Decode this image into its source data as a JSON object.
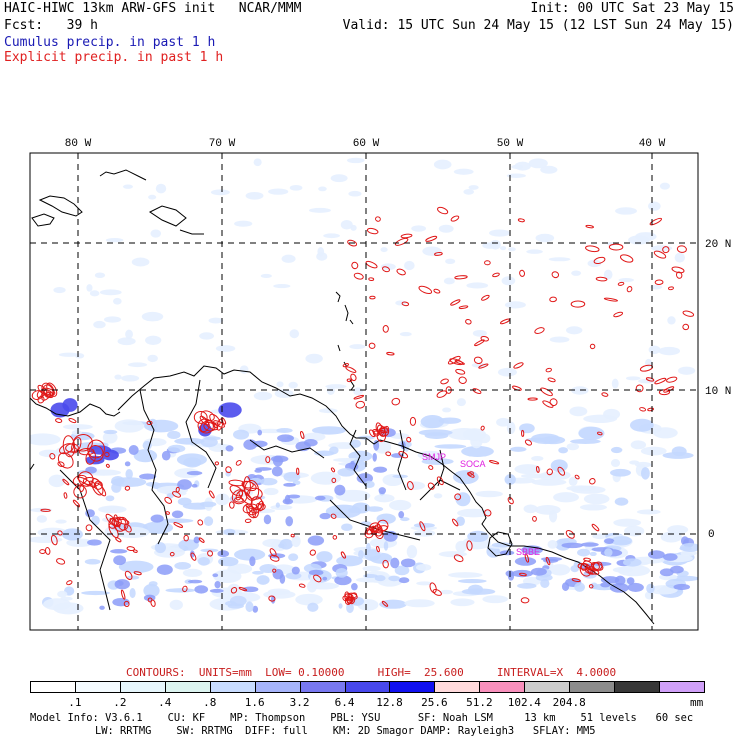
{
  "header": {
    "line1_left": "HAIC-HIWC 13km ARW-GFS init   NCAR/MMM",
    "line1_right": "Init: 00 UTC Sat 23 May 15",
    "line2_left": "Fcst:   39 h",
    "line2_right": "Valid: 15 UTC Sun 24 May 15 (12 LST Sun 24 May 15)",
    "line3": "Cumulus precip. in past 1 h",
    "line4": "Explicit precip. in past 1 h",
    "line3_color": "#1a1ab4",
    "line4_color": "#e02020"
  },
  "map": {
    "lon_labels": [
      "80 W",
      "70 W",
      "60 W",
      "50 W",
      "40 W"
    ],
    "lat_labels": [
      "20 N",
      "10 N",
      "0"
    ],
    "station_labels": [
      "SMJP",
      "SOCA",
      "SBBE"
    ],
    "station_color": "#e020e0",
    "explicit_contour_color": "#e01818",
    "cumulus_shade_colors": [
      "#e6f0ff",
      "#c4d8ff",
      "#8c9cf8",
      "#4a4aec"
    ]
  },
  "contour_info": {
    "text": "CONTOURS:  UNITS=mm  LOW= 0.10000     HIGH=  25.600     INTERVAL=X  4.0000",
    "color": "#c81e1e"
  },
  "colorbar": {
    "unit": "mm",
    "labels": [
      ".1",
      ".2",
      ".4",
      ".8",
      "1.6",
      "3.2",
      "6.4",
      "12.8",
      "25.6",
      "51.2",
      "102.4",
      "204.8"
    ],
    "colors": [
      "#ffffff",
      "#f4fbff",
      "#e6f6fc",
      "#dcf4f0",
      "#c8dcff",
      "#a6b4fa",
      "#7878f0",
      "#4848ec",
      "#1010f0",
      "#ffdadc",
      "#f890bc",
      "#cccccc",
      "#8c8c8c",
      "#383838",
      "#d0a0f8"
    ]
  },
  "model_info": {
    "line1": "Model Info: V3.6.1    CU: KF    MP: Thompson    PBL: YSU      SF: Noah LSM     13 km    51 levels   60 sec",
    "line2": "    LW: RRTMG    SW: RRTMG  DIFF: full    KM: 2D Smagor DAMP: Rayleigh3   SFLAY: MM5"
  }
}
